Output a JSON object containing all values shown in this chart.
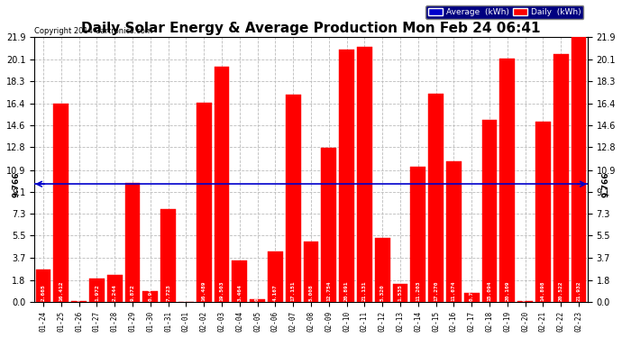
{
  "title": "Daily Solar Energy & Average Production Mon Feb 24 06:41",
  "copyright": "Copyright 2014 Cartronics.com",
  "categories": [
    "01-24",
    "01-25",
    "01-26",
    "01-27",
    "01-28",
    "01-29",
    "01-30",
    "01-31",
    "02-01",
    "02-02",
    "02-03",
    "02-04",
    "02-05",
    "02-06",
    "02-07",
    "02-08",
    "02-09",
    "02-10",
    "02-11",
    "02-12",
    "02-13",
    "02-14",
    "02-15",
    "02-16",
    "02-17",
    "02-18",
    "02-19",
    "02-20",
    "02-21",
    "02-22",
    "02-23"
  ],
  "values": [
    2.665,
    16.412,
    0.078,
    1.972,
    2.244,
    9.872,
    0.943,
    7.723,
    0.0,
    16.489,
    19.503,
    3.464,
    0.202,
    4.167,
    17.151,
    5.008,
    12.754,
    20.891,
    21.131,
    5.32,
    1.535,
    11.203,
    17.27,
    11.674,
    0.732,
    15.094,
    20.109,
    0.127,
    14.898,
    20.522,
    21.932
  ],
  "average": 9.766,
  "bar_color": "#ff0000",
  "average_line_color": "#0000cc",
  "background_color": "#ffffff",
  "grid_color": "#bbbbbb",
  "ylim_max": 21.9,
  "yticks": [
    0.0,
    1.8,
    3.7,
    5.5,
    7.3,
    9.1,
    10.9,
    12.8,
    14.6,
    16.4,
    18.3,
    20.1,
    21.9
  ],
  "legend_avg_bg": "#0000cc",
  "legend_daily_bg": "#ff0000",
  "title_fontsize": 11,
  "copyright_fontsize": 6,
  "tick_fontsize": 7,
  "bar_label_fontsize": 4.5,
  "xtick_fontsize": 5.5
}
